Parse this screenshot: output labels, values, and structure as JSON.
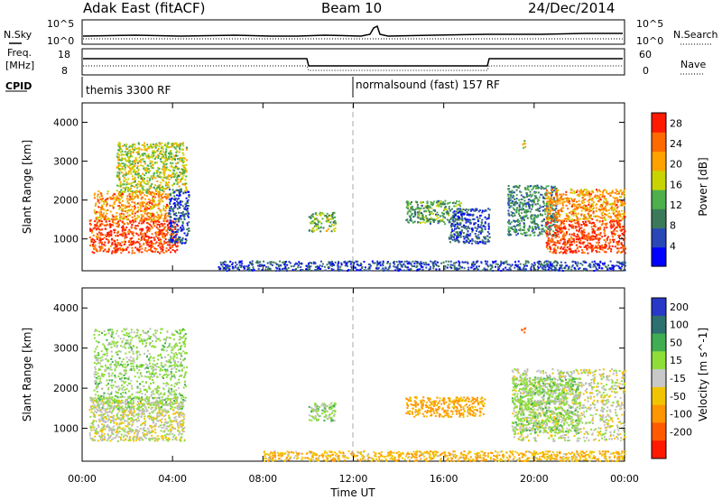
{
  "header": {
    "station": "Adak East (fitACF)",
    "beam": "Beam 10",
    "date": "24/Dec/2014"
  },
  "panel_labels": {
    "nsky": "N.Sky",
    "nsearch": "N.Search",
    "freq_line1": "Freq.",
    "freq_line2": "[MHz]",
    "nave": "Nave",
    "cpid": "CPID",
    "nsky_top_left": "10^5",
    "nsky_bottom_left": "10^0",
    "nsky_top_right": "10^5",
    "nsky_bottom_right": "10^0",
    "freq_top_left": "18",
    "freq_bottom_left": "8",
    "nave_top_right": "60",
    "nave_bottom_right": "0"
  },
  "cpid_segments": [
    {
      "label": "themis 3300 RF",
      "start_hour": 0
    },
    {
      "label": "normalsound (fast) 157 RF",
      "start_hour": 12
    }
  ],
  "colors": {
    "power_scale": [
      "#0000ff",
      "#2a47b8",
      "#3a7a5a",
      "#4db04d",
      "#c8d400",
      "#ffa200",
      "#ff6a00",
      "#ff1a00"
    ],
    "velocity_scale": [
      "#ff1a00",
      "#ff5a00",
      "#ff9500",
      "#f2c400",
      "#c8c8c8",
      "#8ede3a",
      "#3fae52",
      "#2e6f6f",
      "#2838c8"
    ],
    "ground_gray": "#bcbcbc"
  },
  "chart_data": [
    {
      "type": "heatmap",
      "panel": "power",
      "xlabel": "Time UT",
      "ylabel": "Slant Range [km]",
      "x_ticks": [
        "00:00",
        "04:00",
        "08:00",
        "12:00",
        "16:00",
        "20:00",
        "00:00"
      ],
      "xlim_hours": [
        0,
        24
      ],
      "y_ticks": [
        1000,
        2000,
        3000,
        4000
      ],
      "ylim": [
        180,
        4500
      ],
      "colorbar_label": "Power [dB]",
      "colorbar_ticks": [
        4,
        8,
        12,
        16,
        20,
        24,
        28
      ],
      "colorbar_range": [
        0,
        30
      ],
      "scatter_regions": [
        {
          "t0": 0.3,
          "t1": 4.2,
          "r0": 650,
          "r1": 1500,
          "value": 27
        },
        {
          "t0": 0.5,
          "t1": 3.8,
          "r0": 1500,
          "r1": 2250,
          "value": 22
        },
        {
          "t0": 1.5,
          "t1": 4.6,
          "r0": 2200,
          "r1": 3500,
          "value": 16
        },
        {
          "t0": 3.8,
          "t1": 4.7,
          "r0": 900,
          "r1": 2300,
          "value": 6
        },
        {
          "t0": 10.0,
          "t1": 11.2,
          "r0": 1200,
          "r1": 1700,
          "value": 14
        },
        {
          "t0": 14.3,
          "t1": 16.8,
          "r0": 1400,
          "r1": 2000,
          "value": 12
        },
        {
          "t0": 16.2,
          "t1": 18.0,
          "r0": 900,
          "r1": 1800,
          "value": 6
        },
        {
          "t0": 18.8,
          "t1": 21.0,
          "r0": 1100,
          "r1": 2400,
          "value": 10
        },
        {
          "t0": 20.5,
          "t1": 24.0,
          "r0": 650,
          "r1": 1500,
          "value": 27
        },
        {
          "t0": 20.5,
          "t1": 24.0,
          "r0": 1500,
          "r1": 2300,
          "value": 22
        },
        {
          "t0": 19.4,
          "t1": 19.6,
          "r0": 3350,
          "r1": 3550,
          "value": 18
        },
        {
          "t0": 6.0,
          "t1": 24.0,
          "r0": 200,
          "r1": 450,
          "value": 6
        }
      ]
    },
    {
      "type": "heatmap",
      "panel": "velocity",
      "xlabel": "Time UT",
      "ylabel": "Slant Range [km]",
      "x_ticks": [
        "00:00",
        "04:00",
        "08:00",
        "12:00",
        "16:00",
        "20:00",
        "00:00"
      ],
      "xlim_hours": [
        0,
        24
      ],
      "y_ticks": [
        1000,
        2000,
        3000,
        4000
      ],
      "ylim": [
        180,
        4500
      ],
      "colorbar_label": "Velocity [m s^-1]",
      "colorbar_ticks": [
        200,
        100,
        50,
        15,
        -15,
        -50,
        -100,
        -200
      ],
      "scatter_regions": [
        {
          "t0": 0.3,
          "t1": 4.5,
          "r0": 700,
          "r1": 1800,
          "value": 0
        },
        {
          "t0": 0.5,
          "t1": 4.6,
          "r0": 1500,
          "r1": 3500,
          "value": 30
        },
        {
          "t0": 10.0,
          "t1": 11.2,
          "r0": 1200,
          "r1": 1650,
          "value": 30
        },
        {
          "t0": 14.3,
          "t1": 17.8,
          "r0": 1300,
          "r1": 1800,
          "value": -60
        },
        {
          "t0": 19.0,
          "t1": 24.0,
          "r0": 700,
          "r1": 2500,
          "value": 0
        },
        {
          "t0": 19.0,
          "t1": 22.0,
          "r0": 900,
          "r1": 2300,
          "value": 30
        },
        {
          "t0": 19.4,
          "t1": 19.6,
          "r0": 3400,
          "r1": 3550,
          "value": -150
        },
        {
          "t0": 8.0,
          "t1": 24.0,
          "r0": 200,
          "r1": 450,
          "value": -40
        }
      ]
    }
  ]
}
